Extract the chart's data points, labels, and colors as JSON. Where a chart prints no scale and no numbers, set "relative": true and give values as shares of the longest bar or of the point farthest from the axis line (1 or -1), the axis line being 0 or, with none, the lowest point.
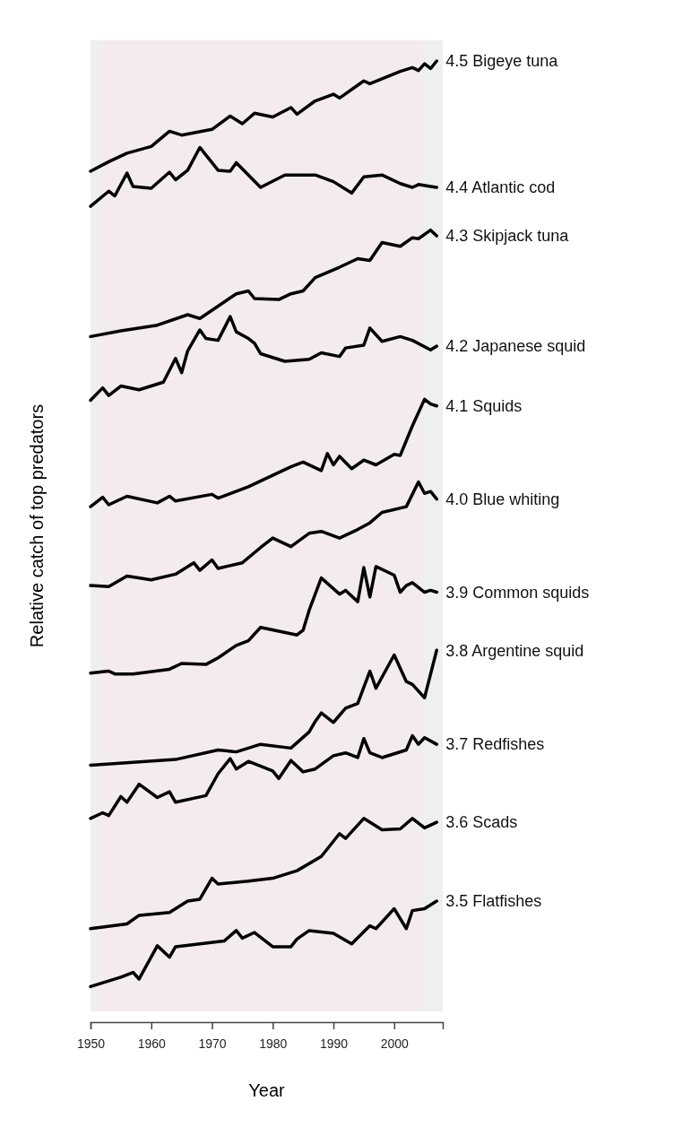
{
  "chart_data": {
    "type": "line",
    "relative": true,
    "xlabel": "Year",
    "ylabel": "Relative catch of top predators",
    "xlim": [
      1950,
      2008
    ],
    "xticks": [
      1950,
      1960,
      1970,
      1980,
      1990,
      2000
    ],
    "legend": false,
    "bands": [
      {
        "axis": "x",
        "from": 1950,
        "to": 1951.5,
        "color": "#efefef"
      },
      {
        "axis": "x",
        "from": 1951.5,
        "to": 2004.3,
        "color": "#f4ebee"
      },
      {
        "axis": "x",
        "from": 2004.3,
        "to": 2008,
        "color": "#efefef"
      }
    ],
    "series": [
      {
        "name": "4.5 Bigeye tuna",
        "color": "#000000",
        "x": [
          1950,
          1953,
          1956,
          1960,
          1963,
          1965,
          1970,
          1973,
          1975,
          1977,
          1980,
          1983,
          1984,
          1987,
          1990,
          1991,
          1995,
          1996,
          2001,
          2003,
          2004,
          2005,
          2006,
          2007
        ],
        "values": [
          0.884,
          0.894,
          0.903,
          0.91,
          0.926,
          0.922,
          0.928,
          0.942,
          0.934,
          0.945,
          0.941,
          0.951,
          0.944,
          0.958,
          0.965,
          0.961,
          0.979,
          0.976,
          0.989,
          0.993,
          0.99,
          0.997,
          0.992,
          1
        ]
      },
      {
        "name": "4.4 Atlantic cod",
        "color": "#000000",
        "x": [
          1950,
          1953,
          1954,
          1956,
          1957,
          1960,
          1963,
          1964,
          1966,
          1968,
          1971,
          1973,
          1974,
          1978,
          1982,
          1987,
          1990,
          1993,
          1995,
          1998,
          2001,
          2003,
          2004,
          2006,
          2007
        ],
        "values": [
          0.847,
          0.863,
          0.858,
          0.882,
          0.868,
          0.866,
          0.883,
          0.875,
          0.885,
          0.909,
          0.885,
          0.884,
          0.893,
          0.867,
          0.88,
          0.88,
          0.873,
          0.861,
          0.878,
          0.88,
          0.871,
          0.867,
          0.87,
          0.868,
          0.867
        ]
      },
      {
        "name": "4.3 Skipjack tuna",
        "color": "#000000",
        "x": [
          1950,
          1955,
          1961,
          1966,
          1968,
          1971,
          1974,
          1976,
          1977,
          1981,
          1983,
          1985,
          1987,
          1991,
          1994,
          1996,
          1998,
          2001,
          2003,
          2004,
          2006,
          2007
        ],
        "values": [
          0.71,
          0.716,
          0.722,
          0.733,
          0.729,
          0.742,
          0.755,
          0.758,
          0.75,
          0.749,
          0.755,
          0.758,
          0.772,
          0.783,
          0.792,
          0.79,
          0.809,
          0.805,
          0.814,
          0.813,
          0.822,
          0.816
        ]
      },
      {
        "name": "4.2 Japanese squid",
        "color": "#000000",
        "x": [
          1950,
          1952,
          1953,
          1955,
          1958,
          1962,
          1964,
          1965,
          1966,
          1968,
          1969,
          1971,
          1973,
          1974,
          1976,
          1977,
          1978,
          1982,
          1986,
          1988,
          1991,
          1992,
          1995,
          1996,
          1998,
          2001,
          2003,
          2006,
          2007
        ],
        "values": [
          0.643,
          0.656,
          0.648,
          0.658,
          0.654,
          0.662,
          0.687,
          0.672,
          0.695,
          0.717,
          0.708,
          0.706,
          0.731,
          0.715,
          0.708,
          0.703,
          0.692,
          0.684,
          0.686,
          0.693,
          0.689,
          0.698,
          0.701,
          0.719,
          0.705,
          0.71,
          0.706,
          0.696,
          0.7
        ]
      },
      {
        "name": "4.1 Squids",
        "color": "#000000",
        "x": [
          1950,
          1952,
          1953,
          1956,
          1961,
          1963,
          1964,
          1970,
          1971,
          1976,
          1980,
          1983,
          1985,
          1988,
          1989,
          1990,
          1991,
          1993,
          1995,
          1997,
          2000,
          2001,
          2003,
          2005,
          2006,
          2007
        ],
        "values": [
          0.531,
          0.541,
          0.533,
          0.542,
          0.535,
          0.542,
          0.537,
          0.544,
          0.54,
          0.552,
          0.564,
          0.573,
          0.578,
          0.569,
          0.587,
          0.575,
          0.584,
          0.571,
          0.58,
          0.575,
          0.586,
          0.585,
          0.616,
          0.644,
          0.639,
          0.637
        ]
      },
      {
        "name": "4.0 Blue whiting",
        "color": "#000000",
        "x": [
          1950,
          1953,
          1956,
          1960,
          1964,
          1967,
          1968,
          1970,
          1971,
          1975,
          1978,
          1980,
          1983,
          1986,
          1988,
          1991,
          1994,
          1996,
          1998,
          2002,
          2004,
          2005,
          2006,
          2007
        ],
        "values": [
          0.448,
          0.447,
          0.458,
          0.454,
          0.46,
          0.472,
          0.464,
          0.475,
          0.466,
          0.472,
          0.488,
          0.498,
          0.489,
          0.503,
          0.505,
          0.498,
          0.507,
          0.514,
          0.525,
          0.531,
          0.557,
          0.545,
          0.547,
          0.539
        ]
      },
      {
        "name": "3.9 Common squids",
        "color": "#000000",
        "x": [
          1950,
          1953,
          1954,
          1957,
          1963,
          1965,
          1969,
          1971,
          1974,
          1976,
          1978,
          1984,
          1985,
          1986,
          1988,
          1991,
          1992,
          1994,
          1995,
          1996,
          1997,
          2000,
          2001,
          2002,
          2003,
          2005,
          2006,
          2007
        ],
        "values": [
          0.356,
          0.358,
          0.355,
          0.355,
          0.36,
          0.366,
          0.365,
          0.372,
          0.385,
          0.39,
          0.404,
          0.396,
          0.401,
          0.422,
          0.456,
          0.439,
          0.443,
          0.431,
          0.467,
          0.436,
          0.468,
          0.459,
          0.441,
          0.448,
          0.451,
          0.441,
          0.443,
          0.441
        ]
      },
      {
        "name": "3.8 Argentine squid",
        "color": "#000000",
        "x": [
          1950,
          1964,
          1971,
          1974,
          1978,
          1983,
          1986,
          1987,
          1988,
          1990,
          1992,
          1994,
          1996,
          1997,
          2000,
          2002,
          2003,
          2005,
          2007
        ],
        "values": [
          0.259,
          0.265,
          0.275,
          0.273,
          0.281,
          0.277,
          0.294,
          0.305,
          0.314,
          0.304,
          0.319,
          0.324,
          0.358,
          0.34,
          0.375,
          0.347,
          0.344,
          0.33,
          0.38
        ]
      },
      {
        "name": "3.7 Redfishes",
        "color": "#000000",
        "x": [
          1950,
          1952,
          1953,
          1955,
          1956,
          1958,
          1961,
          1963,
          1964,
          1969,
          1971,
          1973,
          1974,
          1976,
          1980,
          1981,
          1983,
          1985,
          1987,
          1990,
          1992,
          1994,
          1995,
          1996,
          1998,
          2002,
          2003,
          2004,
          2005,
          2007
        ],
        "values": [
          0.203,
          0.209,
          0.206,
          0.226,
          0.22,
          0.239,
          0.225,
          0.231,
          0.22,
          0.227,
          0.25,
          0.266,
          0.255,
          0.263,
          0.253,
          0.245,
          0.264,
          0.252,
          0.255,
          0.269,
          0.272,
          0.267,
          0.287,
          0.272,
          0.267,
          0.275,
          0.29,
          0.281,
          0.288,
          0.281
        ]
      },
      {
        "name": "3.6 Scads",
        "color": "#000000",
        "x": [
          1950,
          1956,
          1958,
          1963,
          1966,
          1968,
          1970,
          1971,
          1976,
          1980,
          1984,
          1988,
          1991,
          1992,
          1995,
          1998,
          2001,
          2003,
          2005,
          2007
        ],
        "values": [
          0.087,
          0.092,
          0.101,
          0.104,
          0.116,
          0.118,
          0.14,
          0.134,
          0.137,
          0.14,
          0.148,
          0.163,
          0.187,
          0.182,
          0.203,
          0.191,
          0.192,
          0.203,
          0.193,
          0.199
        ]
      },
      {
        "name": "3.5 Flatfishes",
        "color": "#000000",
        "x": [
          1950,
          1955,
          1957,
          1958,
          1961,
          1963,
          1964,
          1972,
          1974,
          1975,
          1977,
          1980,
          1983,
          1984,
          1986,
          1990,
          1993,
          1996,
          1997,
          2000,
          2002,
          2003,
          2005,
          2007
        ],
        "values": [
          0.026,
          0.036,
          0.041,
          0.034,
          0.069,
          0.057,
          0.068,
          0.074,
          0.085,
          0.077,
          0.083,
          0.068,
          0.068,
          0.076,
          0.085,
          0.082,
          0.071,
          0.09,
          0.087,
          0.108,
          0.087,
          0.106,
          0.108,
          0.116
        ]
      }
    ]
  }
}
